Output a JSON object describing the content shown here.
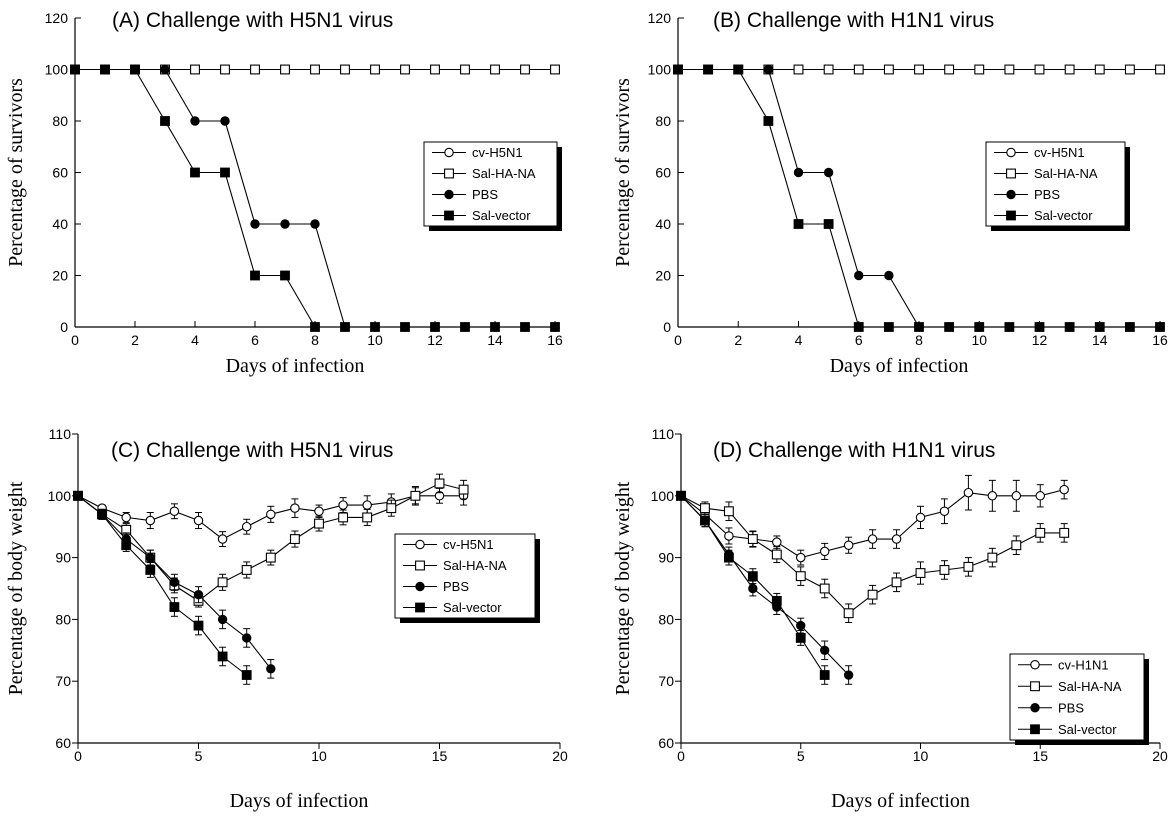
{
  "chart_data": [
    {
      "id": "A",
      "type": "line",
      "title": "(A)   Challenge with H5N1 virus",
      "xlabel": "Days of infection",
      "ylabel": "Percentage of survivors",
      "xlim": [
        0,
        16
      ],
      "ylim": [
        0,
        120
      ],
      "xticks": [
        0,
        2,
        4,
        6,
        8,
        10,
        12,
        14,
        16
      ],
      "yticks": [
        0,
        20,
        40,
        60,
        80,
        100,
        120
      ],
      "tick_labels_x": [
        "0",
        "2",
        "4",
        "6",
        "8",
        "10",
        "12",
        "14",
        "16"
      ],
      "tick_labels_y": [
        "0",
        "20",
        "40",
        "60",
        "80",
        "100",
        "120"
      ],
      "legend_placement": "right",
      "series": [
        {
          "name": "cv-H5N1",
          "marker": "circle-open",
          "x": [
            0,
            1,
            2,
            3,
            4,
            5,
            6,
            7,
            8,
            9,
            10,
            11,
            12,
            13,
            14,
            15,
            16
          ],
          "y": [
            100,
            100,
            100,
            100,
            100,
            100,
            100,
            100,
            100,
            100,
            100,
            100,
            100,
            100,
            100,
            100,
            100
          ]
        },
        {
          "name": "Sal-HA-NA",
          "marker": "square-open",
          "x": [
            0,
            1,
            2,
            3,
            4,
            5,
            6,
            7,
            8,
            9,
            10,
            11,
            12,
            13,
            14,
            15,
            16
          ],
          "y": [
            100,
            100,
            100,
            100,
            100,
            100,
            100,
            100,
            100,
            100,
            100,
            100,
            100,
            100,
            100,
            100,
            100
          ]
        },
        {
          "name": "PBS",
          "marker": "circle-filled",
          "x": [
            0,
            1,
            2,
            3,
            4,
            5,
            6,
            7,
            8,
            9,
            10,
            11,
            12,
            13,
            14,
            15,
            16
          ],
          "y": [
            100,
            100,
            100,
            100,
            80,
            80,
            40,
            40,
            40,
            0,
            0,
            0,
            0,
            0,
            0,
            0,
            0
          ]
        },
        {
          "name": "Sal-vector",
          "marker": "square-filled",
          "x": [
            0,
            1,
            2,
            3,
            4,
            5,
            6,
            7,
            8,
            9,
            10,
            11,
            12,
            13,
            14,
            15,
            16
          ],
          "y": [
            100,
            100,
            100,
            80,
            60,
            60,
            20,
            20,
            0,
            0,
            0,
            0,
            0,
            0,
            0,
            0,
            0
          ]
        }
      ]
    },
    {
      "id": "B",
      "type": "line",
      "title": "(B)   Challenge with H1N1 virus",
      "xlabel": "Days of infection",
      "ylabel": "Percentage of survivors",
      "xlim": [
        0,
        16
      ],
      "ylim": [
        0,
        120
      ],
      "xticks": [
        0,
        2,
        4,
        6,
        8,
        10,
        12,
        14,
        16
      ],
      "yticks": [
        0,
        20,
        40,
        60,
        80,
        100,
        120
      ],
      "tick_labels_x": [
        "0",
        "2",
        "4",
        "6",
        "8",
        "10",
        "12",
        "14",
        "16"
      ],
      "tick_labels_y": [
        "0",
        "20",
        "40",
        "60",
        "80",
        "100",
        "120"
      ],
      "legend_placement": "right",
      "series": [
        {
          "name": "cv-H5N1",
          "marker": "circle-open",
          "x": [
            0,
            1,
            2,
            3,
            4,
            5,
            6,
            7,
            8,
            9,
            10,
            11,
            12,
            13,
            14,
            15,
            16
          ],
          "y": [
            100,
            100,
            100,
            100,
            100,
            100,
            100,
            100,
            100,
            100,
            100,
            100,
            100,
            100,
            100,
            100,
            100
          ]
        },
        {
          "name": "Sal-HA-NA",
          "marker": "square-open",
          "x": [
            0,
            1,
            2,
            3,
            4,
            5,
            6,
            7,
            8,
            9,
            10,
            11,
            12,
            13,
            14,
            15,
            16
          ],
          "y": [
            100,
            100,
            100,
            100,
            100,
            100,
            100,
            100,
            100,
            100,
            100,
            100,
            100,
            100,
            100,
            100,
            100
          ]
        },
        {
          "name": "PBS",
          "marker": "circle-filled",
          "x": [
            0,
            1,
            2,
            3,
            4,
            5,
            6,
            7,
            8,
            9,
            10,
            11,
            12,
            13,
            14,
            15,
            16
          ],
          "y": [
            100,
            100,
            100,
            100,
            60,
            60,
            20,
            20,
            0,
            0,
            0,
            0,
            0,
            0,
            0,
            0,
            0
          ]
        },
        {
          "name": "Sal-vector",
          "marker": "square-filled",
          "x": [
            0,
            1,
            2,
            3,
            4,
            5,
            6,
            7,
            8,
            9,
            10,
            11,
            12,
            13,
            14,
            15,
            16
          ],
          "y": [
            100,
            100,
            100,
            80,
            40,
            40,
            0,
            0,
            0,
            0,
            0,
            0,
            0,
            0,
            0,
            0,
            0
          ]
        }
      ]
    },
    {
      "id": "C",
      "type": "line",
      "title": "(C)   Challenge with H5N1 virus",
      "xlabel": "Days of infection",
      "ylabel": "Percentage of body weight",
      "xlim": [
        0,
        20
      ],
      "ylim": [
        60,
        110
      ],
      "xticks": [
        0,
        5,
        10,
        15,
        20
      ],
      "yticks": [
        60,
        70,
        80,
        90,
        100,
        110
      ],
      "tick_labels_x": [
        "0",
        "5",
        "10",
        "15",
        "20"
      ],
      "tick_labels_y": [
        "60",
        "70",
        "80",
        "90",
        "100",
        "110"
      ],
      "legend_placement": "right",
      "series": [
        {
          "name": "cv-H5N1",
          "marker": "circle-open",
          "x": [
            0,
            1,
            2,
            3,
            4,
            5,
            6,
            7,
            8,
            9,
            10,
            11,
            12,
            13,
            14,
            15,
            16
          ],
          "y": [
            100,
            98,
            96.5,
            96,
            97.5,
            96,
            93,
            95,
            97,
            98,
            97.5,
            98.5,
            98.5,
            99,
            100,
            100,
            100
          ],
          "err": [
            0,
            0.5,
            0.8,
            1.3,
            1.2,
            1.3,
            1.2,
            1.2,
            1.3,
            1.5,
            1,
            1.2,
            1.5,
            1.3,
            1.5,
            1.2,
            1.5
          ]
        },
        {
          "name": "Sal-HA-NA",
          "marker": "square-open",
          "x": [
            0,
            1,
            2,
            3,
            4,
            5,
            6,
            7,
            8,
            9,
            10,
            11,
            12,
            13,
            14,
            15,
            16
          ],
          "y": [
            100,
            97,
            94.5,
            90,
            85.5,
            83,
            86,
            88,
            90,
            93,
            95.5,
            96.5,
            96.5,
            98,
            100,
            102,
            101
          ],
          "err": [
            0,
            0.8,
            1,
            1.2,
            1.2,
            1,
            1.3,
            1.3,
            1.2,
            1.3,
            1.2,
            1.2,
            1.3,
            1.3,
            1.3,
            1.5,
            1.5
          ]
        },
        {
          "name": "PBS",
          "marker": "circle-filled",
          "x": [
            0,
            1,
            2,
            3,
            4,
            5,
            6,
            7,
            8
          ],
          "y": [
            100,
            97,
            93,
            90,
            86,
            84,
            80,
            77,
            72
          ],
          "err": [
            0,
            0.8,
            1,
            1.2,
            1.3,
            1.3,
            1.5,
            1.5,
            1.5
          ]
        },
        {
          "name": "Sal-vector",
          "marker": "square-filled",
          "x": [
            0,
            1,
            2,
            3,
            4,
            5,
            6,
            7
          ],
          "y": [
            100,
            97,
            92,
            88,
            82,
            79,
            74,
            71
          ],
          "err": [
            0,
            0.8,
            1,
            1.2,
            1.5,
            1.5,
            1.5,
            1.5
          ]
        }
      ]
    },
    {
      "id": "D",
      "type": "line",
      "title": "(D)   Challenge with H1N1 virus",
      "xlabel": "Days of infection",
      "ylabel": "Percentage of body weight",
      "xlim": [
        0,
        20
      ],
      "ylim": [
        60,
        110
      ],
      "xticks": [
        0,
        5,
        10,
        15,
        20
      ],
      "yticks": [
        60,
        70,
        80,
        90,
        100,
        110
      ],
      "tick_labels_x": [
        "0",
        "5",
        "10",
        "15",
        "20"
      ],
      "tick_labels_y": [
        "60",
        "70",
        "80",
        "90",
        "100",
        "110"
      ],
      "legend_placement": "right",
      "series": [
        {
          "name": "cv-H1N1",
          "marker": "circle-open",
          "x": [
            0,
            1,
            2,
            3,
            4,
            5,
            6,
            7,
            8,
            9,
            10,
            11,
            12,
            13,
            14,
            15,
            16
          ],
          "y": [
            100,
            97,
            93.5,
            93,
            92.5,
            90,
            91,
            92,
            93,
            93,
            96.5,
            97.5,
            100.5,
            100,
            100,
            100,
            101
          ],
          "err": [
            0,
            1,
            1.3,
            1.2,
            1,
            1.2,
            1.3,
            1.3,
            1.5,
            1.5,
            1.8,
            2,
            2.8,
            2.5,
            2.5,
            1.8,
            1.5
          ]
        },
        {
          "name": "Sal-HA-NA",
          "marker": "square-open",
          "x": [
            0,
            1,
            2,
            3,
            4,
            5,
            6,
            7,
            8,
            9,
            10,
            11,
            12,
            13,
            14,
            15,
            16
          ],
          "y": [
            100,
            98,
            97.5,
            93,
            90.5,
            87,
            85,
            81,
            84,
            86,
            87.5,
            88,
            88.5,
            90,
            92,
            94,
            94
          ],
          "err": [
            0,
            1,
            1.5,
            1.3,
            1.3,
            1.5,
            1.5,
            1.5,
            1.5,
            1.5,
            1.8,
            1.5,
            1.5,
            1.5,
            1.5,
            1.5,
            1.5
          ]
        },
        {
          "name": "PBS",
          "marker": "circle-filled",
          "x": [
            0,
            1,
            2,
            3,
            4,
            5,
            6,
            7
          ],
          "y": [
            100,
            96,
            90.5,
            85,
            82,
            79,
            75,
            71
          ],
          "err": [
            0,
            1,
            1.2,
            1.2,
            1.2,
            1.2,
            1.5,
            1.5
          ]
        },
        {
          "name": "Sal-vector",
          "marker": "square-filled",
          "x": [
            0,
            1,
            2,
            3,
            4,
            5,
            6
          ],
          "y": [
            100,
            96,
            90,
            87,
            83,
            77,
            71
          ],
          "err": [
            0,
            1,
            1.2,
            1.2,
            1.2,
            1.2,
            1.5
          ]
        }
      ]
    }
  ]
}
